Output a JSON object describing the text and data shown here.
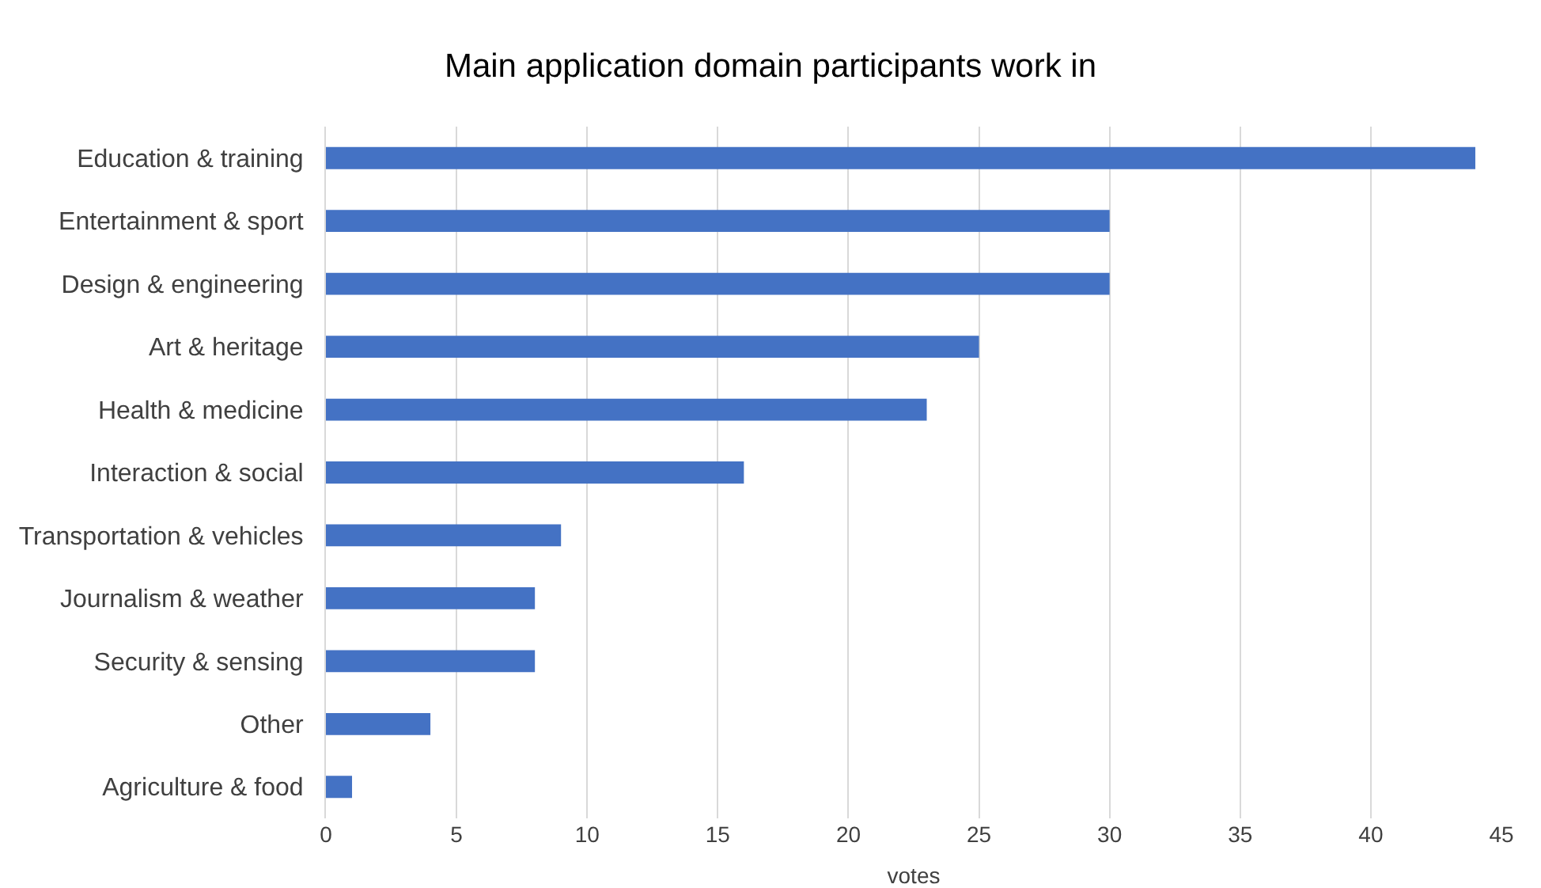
{
  "chart_data": {
    "type": "bar",
    "orientation": "horizontal",
    "title": "Main application domain participants work in",
    "xlabel": "votes",
    "categories": [
      "Education & training",
      "Entertainment & sport",
      "Design & engineering",
      "Art & heritage",
      "Health & medicine",
      "Interaction & social",
      "Transportation & vehicles",
      "Journalism & weather",
      "Security & sensing",
      "Other",
      "Agriculture & food"
    ],
    "values": [
      44,
      30,
      30,
      25,
      23,
      16,
      9,
      8,
      8,
      4,
      1
    ],
    "color": "#4472c4",
    "xlim": [
      0,
      45
    ],
    "xticks": [
      0,
      5,
      10,
      15,
      20,
      25,
      30,
      35,
      40,
      45
    ],
    "grid": "x"
  }
}
